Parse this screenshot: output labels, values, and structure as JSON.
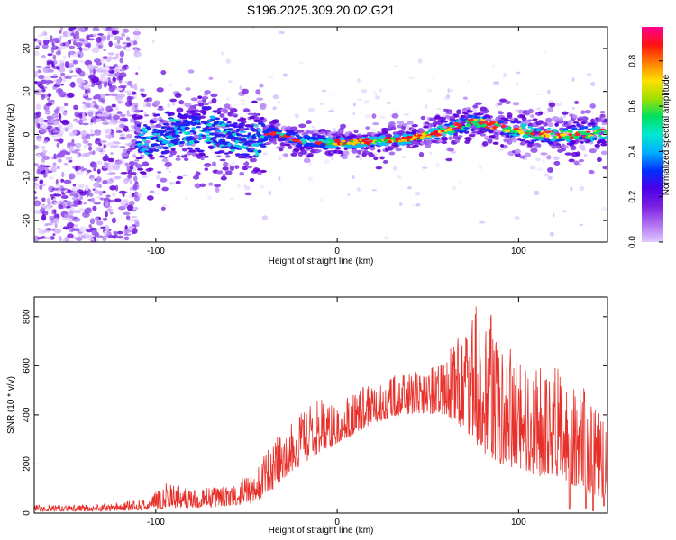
{
  "chart_data": [
    {
      "type": "heatmap",
      "title": "S196.2025.309.20.02.G21",
      "xlabel": "Height of straight line (km)",
      "ylabel": "Frequency (Hz)",
      "xlim": [
        -167,
        149
      ],
      "ylim": [
        -25,
        25
      ],
      "xticks": [
        -100,
        0,
        100
      ],
      "yticks": [
        -20,
        -10,
        0,
        10,
        20
      ],
      "colorbar": {
        "label": "Normalized spectral amplitude",
        "range": [
          0.0,
          0.95
        ],
        "ticks": [
          0.0,
          0.2,
          0.4,
          0.6,
          0.8
        ],
        "tick_labels": [
          "0.0",
          "0.2",
          "0.4",
          "0.6",
          "0.8"
        ],
        "colormap": [
          "#e0c8ff",
          "#b070f0",
          "#7a1fe0",
          "#4a00e8",
          "#0030ff",
          "#00b0ff",
          "#00e8d0",
          "#00e060",
          "#a0e000",
          "#ffe000",
          "#ff8000",
          "#ff1010",
          "#ff0090"
        ]
      },
      "ridge_center": [
        {
          "x": -110,
          "f": -2
        },
        {
          "x": -90,
          "f": 0.5
        },
        {
          "x": -70,
          "f": 1
        },
        {
          "x": -50,
          "f": -2
        },
        {
          "x": -35,
          "f": 0.5
        },
        {
          "x": -20,
          "f": -1.5
        },
        {
          "x": 0,
          "f": -2
        },
        {
          "x": 20,
          "f": -1.5
        },
        {
          "x": 40,
          "f": -1
        },
        {
          "x": 60,
          "f": 1
        },
        {
          "x": 75,
          "f": 3
        },
        {
          "x": 90,
          "f": 2
        },
        {
          "x": 110,
          "f": 0
        },
        {
          "x": 130,
          "f": 0
        },
        {
          "x": 149,
          "f": 0.5
        }
      ],
      "noise_region": [
        -167,
        -110
      ]
    },
    {
      "type": "line",
      "xlabel": "Height of straight line (km)",
      "ylabel": "SNR (10 * v/v)",
      "xlim": [
        -167,
        149
      ],
      "ylim": [
        0,
        880
      ],
      "xticks": [
        -100,
        0,
        100
      ],
      "yticks": [
        0,
        200,
        400,
        600,
        800
      ],
      "line_color": "#e8302a",
      "envelope": [
        {
          "x": -167,
          "low": 5,
          "high": 35
        },
        {
          "x": -130,
          "low": 5,
          "high": 35
        },
        {
          "x": -105,
          "low": 8,
          "high": 60
        },
        {
          "x": -95,
          "low": 10,
          "high": 130
        },
        {
          "x": -80,
          "low": 15,
          "high": 100
        },
        {
          "x": -60,
          "low": 20,
          "high": 110
        },
        {
          "x": -45,
          "low": 30,
          "high": 180
        },
        {
          "x": -35,
          "low": 80,
          "high": 300
        },
        {
          "x": -25,
          "low": 150,
          "high": 380
        },
        {
          "x": -10,
          "low": 220,
          "high": 480
        },
        {
          "x": 0,
          "low": 270,
          "high": 440
        },
        {
          "x": 15,
          "low": 330,
          "high": 520
        },
        {
          "x": 30,
          "low": 380,
          "high": 560
        },
        {
          "x": 45,
          "low": 390,
          "high": 580
        },
        {
          "x": 60,
          "low": 380,
          "high": 650
        },
        {
          "x": 73,
          "low": 280,
          "high": 780
        },
        {
          "x": 78,
          "low": 200,
          "high": 880
        },
        {
          "x": 90,
          "low": 150,
          "high": 760
        },
        {
          "x": 105,
          "low": 120,
          "high": 600
        },
        {
          "x": 120,
          "low": 100,
          "high": 600
        },
        {
          "x": 135,
          "low": 60,
          "high": 520
        },
        {
          "x": 149,
          "low": 20,
          "high": 400
        }
      ],
      "dips": [
        {
          "x": 128,
          "value": 15
        },
        {
          "x": 137,
          "value": 20
        },
        {
          "x": 141,
          "value": 10
        },
        {
          "x": 147,
          "value": 30
        }
      ]
    }
  ]
}
